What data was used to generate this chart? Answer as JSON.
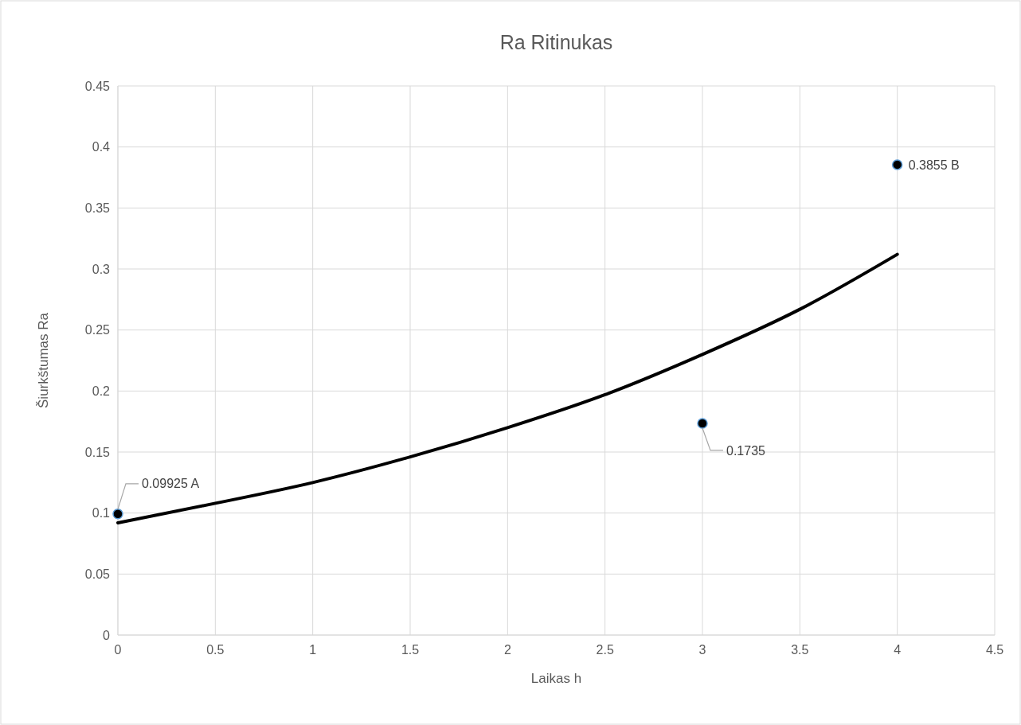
{
  "chart_data": {
    "type": "scatter",
    "title": "Ra Ritinukas",
    "xlabel": "Laikas h",
    "ylabel": "Šiurkštumas Ra",
    "xlim": [
      0,
      4.5
    ],
    "xticks": [
      0,
      0.5,
      1,
      1.5,
      2,
      2.5,
      3,
      3.5,
      4,
      4.5
    ],
    "ylim": [
      0,
      0.45
    ],
    "yticks": [
      0,
      0.05,
      0.1,
      0.15,
      0.2,
      0.25,
      0.3,
      0.35,
      0.4,
      0.45
    ],
    "grid": true,
    "series": [
      {
        "type": "line",
        "color": "#000000",
        "marker": "none",
        "line_style": "solid",
        "x": [
          0,
          0.5,
          1,
          1.5,
          2,
          2.5,
          3,
          3.5,
          4
        ],
        "values": [
          0.092,
          0.108,
          0.125,
          0.146,
          0.17,
          0.197,
          0.23,
          0.267,
          0.312
        ]
      },
      {
        "color": "#000000",
        "marker": "circle",
        "x": [
          0,
          3,
          4
        ],
        "values": [
          0.09925,
          0.1735,
          0.3855
        ],
        "value_labels": [
          "0.09925 A",
          "0.1735",
          "0.3855 B"
        ]
      }
    ]
  }
}
